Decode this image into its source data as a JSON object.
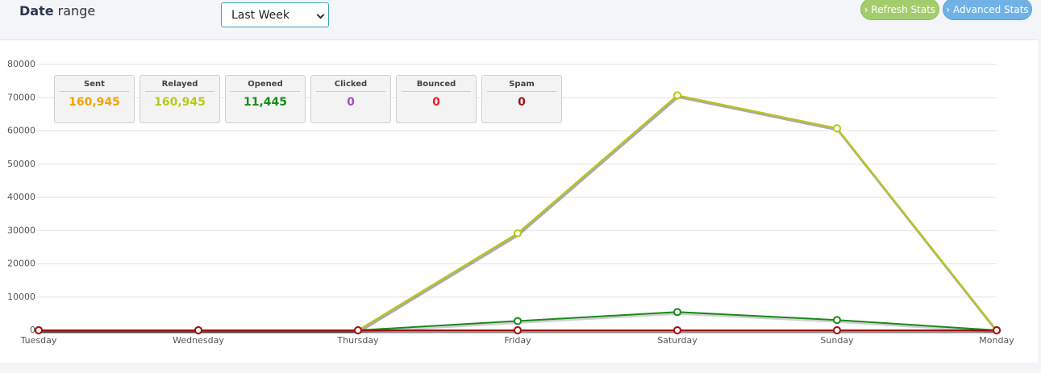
{
  "header": {
    "title_bold": "Date",
    "title_rest": "range",
    "select": "Last Week",
    "buttons": [
      "› Refresh Stats",
      "› Advanced Stats"
    ]
  },
  "stats": [
    "160,945",
    "160,945",
    "11,445",
    "0",
    "0",
    "0"
  ],
  "chart_data": {
    "type": "line",
    "categories": [
      "Tuesday",
      "Wednesday",
      "Thursday",
      "Friday",
      "Saturday",
      "Sunday",
      "Monday"
    ],
    "series": [
      {
        "name": "Sent",
        "color": "#f0a30a",
        "values": [
          0,
          0,
          0,
          29200,
          70700,
          60800,
          0
        ]
      },
      {
        "name": "Relayed",
        "color": "#b8c81e",
        "values": [
          0,
          0,
          0,
          29200,
          70700,
          60800,
          0
        ]
      },
      {
        "name": "Opened",
        "color": "#1a8a1a",
        "values": [
          0,
          0,
          0,
          2800,
          5500,
          3100,
          0
        ]
      },
      {
        "name": "Clicked",
        "color": "#a24ec0",
        "values": [
          0,
          0,
          0,
          0,
          0,
          0,
          0
        ]
      },
      {
        "name": "Bounced",
        "color": "#e8202a",
        "values": [
          0,
          0,
          0,
          0,
          0,
          0,
          0
        ]
      },
      {
        "name": "Spam",
        "color": "#9e1212",
        "values": [
          0,
          0,
          0,
          0,
          0,
          0,
          0
        ]
      }
    ],
    "ylim": [
      0,
      80000
    ],
    "yticks": [
      0,
      10000,
      20000,
      30000,
      40000,
      50000,
      60000,
      70000,
      80000
    ],
    "grid": true
  }
}
